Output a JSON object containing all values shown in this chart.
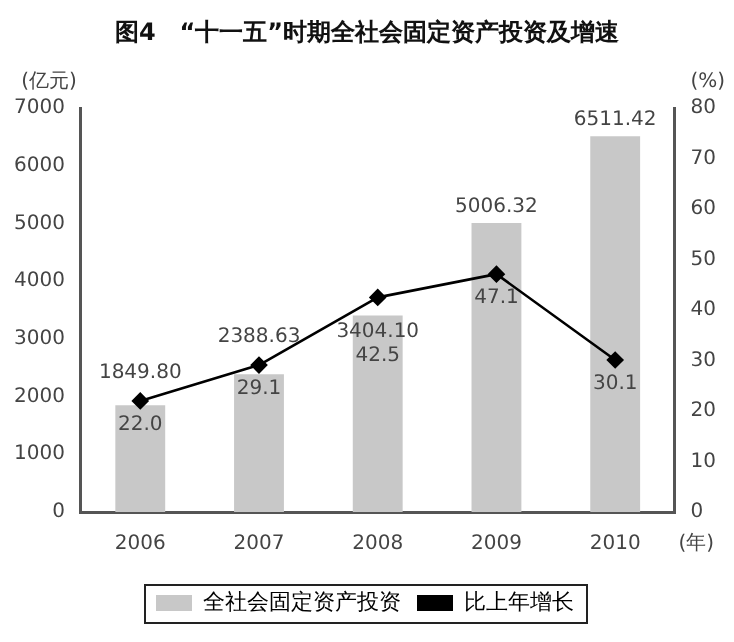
{
  "chart_data": {
    "type": "bar",
    "title": "图4　“十一五”时期全社会固定资产投资及增速",
    "ylabel": "(亿元)",
    "y2label": "(%)",
    "xlabel": "(年)",
    "categories": [
      "2006",
      "2007",
      "2008",
      "2009",
      "2010"
    ],
    "series": [
      {
        "name": "全社会固定资产投资",
        "color": "#c8c8c8",
        "values": [
          1849.8,
          2388.63,
          3404.1,
          5006.32,
          6511.42
        ],
        "value_labels": [
          "1849.80",
          "2388.63",
          "3404.10",
          "5006.32",
          "6511.42"
        ]
      },
      {
        "name": "比上年增长",
        "type": "line",
        "axis": "y2",
        "color": "#000000",
        "marker": "diamond",
        "values": [
          22.0,
          29.1,
          42.5,
          47.1,
          30.1
        ],
        "value_labels": [
          "22.0",
          "29.1",
          "42.5",
          "47.1",
          "30.1"
        ]
      }
    ],
    "ylim": [
      0,
      7000
    ],
    "yticks": [
      0,
      1000,
      2000,
      3000,
      4000,
      5000,
      6000,
      7000
    ],
    "y2lim": [
      0,
      80
    ],
    "y2ticks": [
      0,
      10,
      20,
      30,
      40,
      50,
      60,
      70,
      80
    ],
    "grid": false,
    "legend": "bottom"
  }
}
